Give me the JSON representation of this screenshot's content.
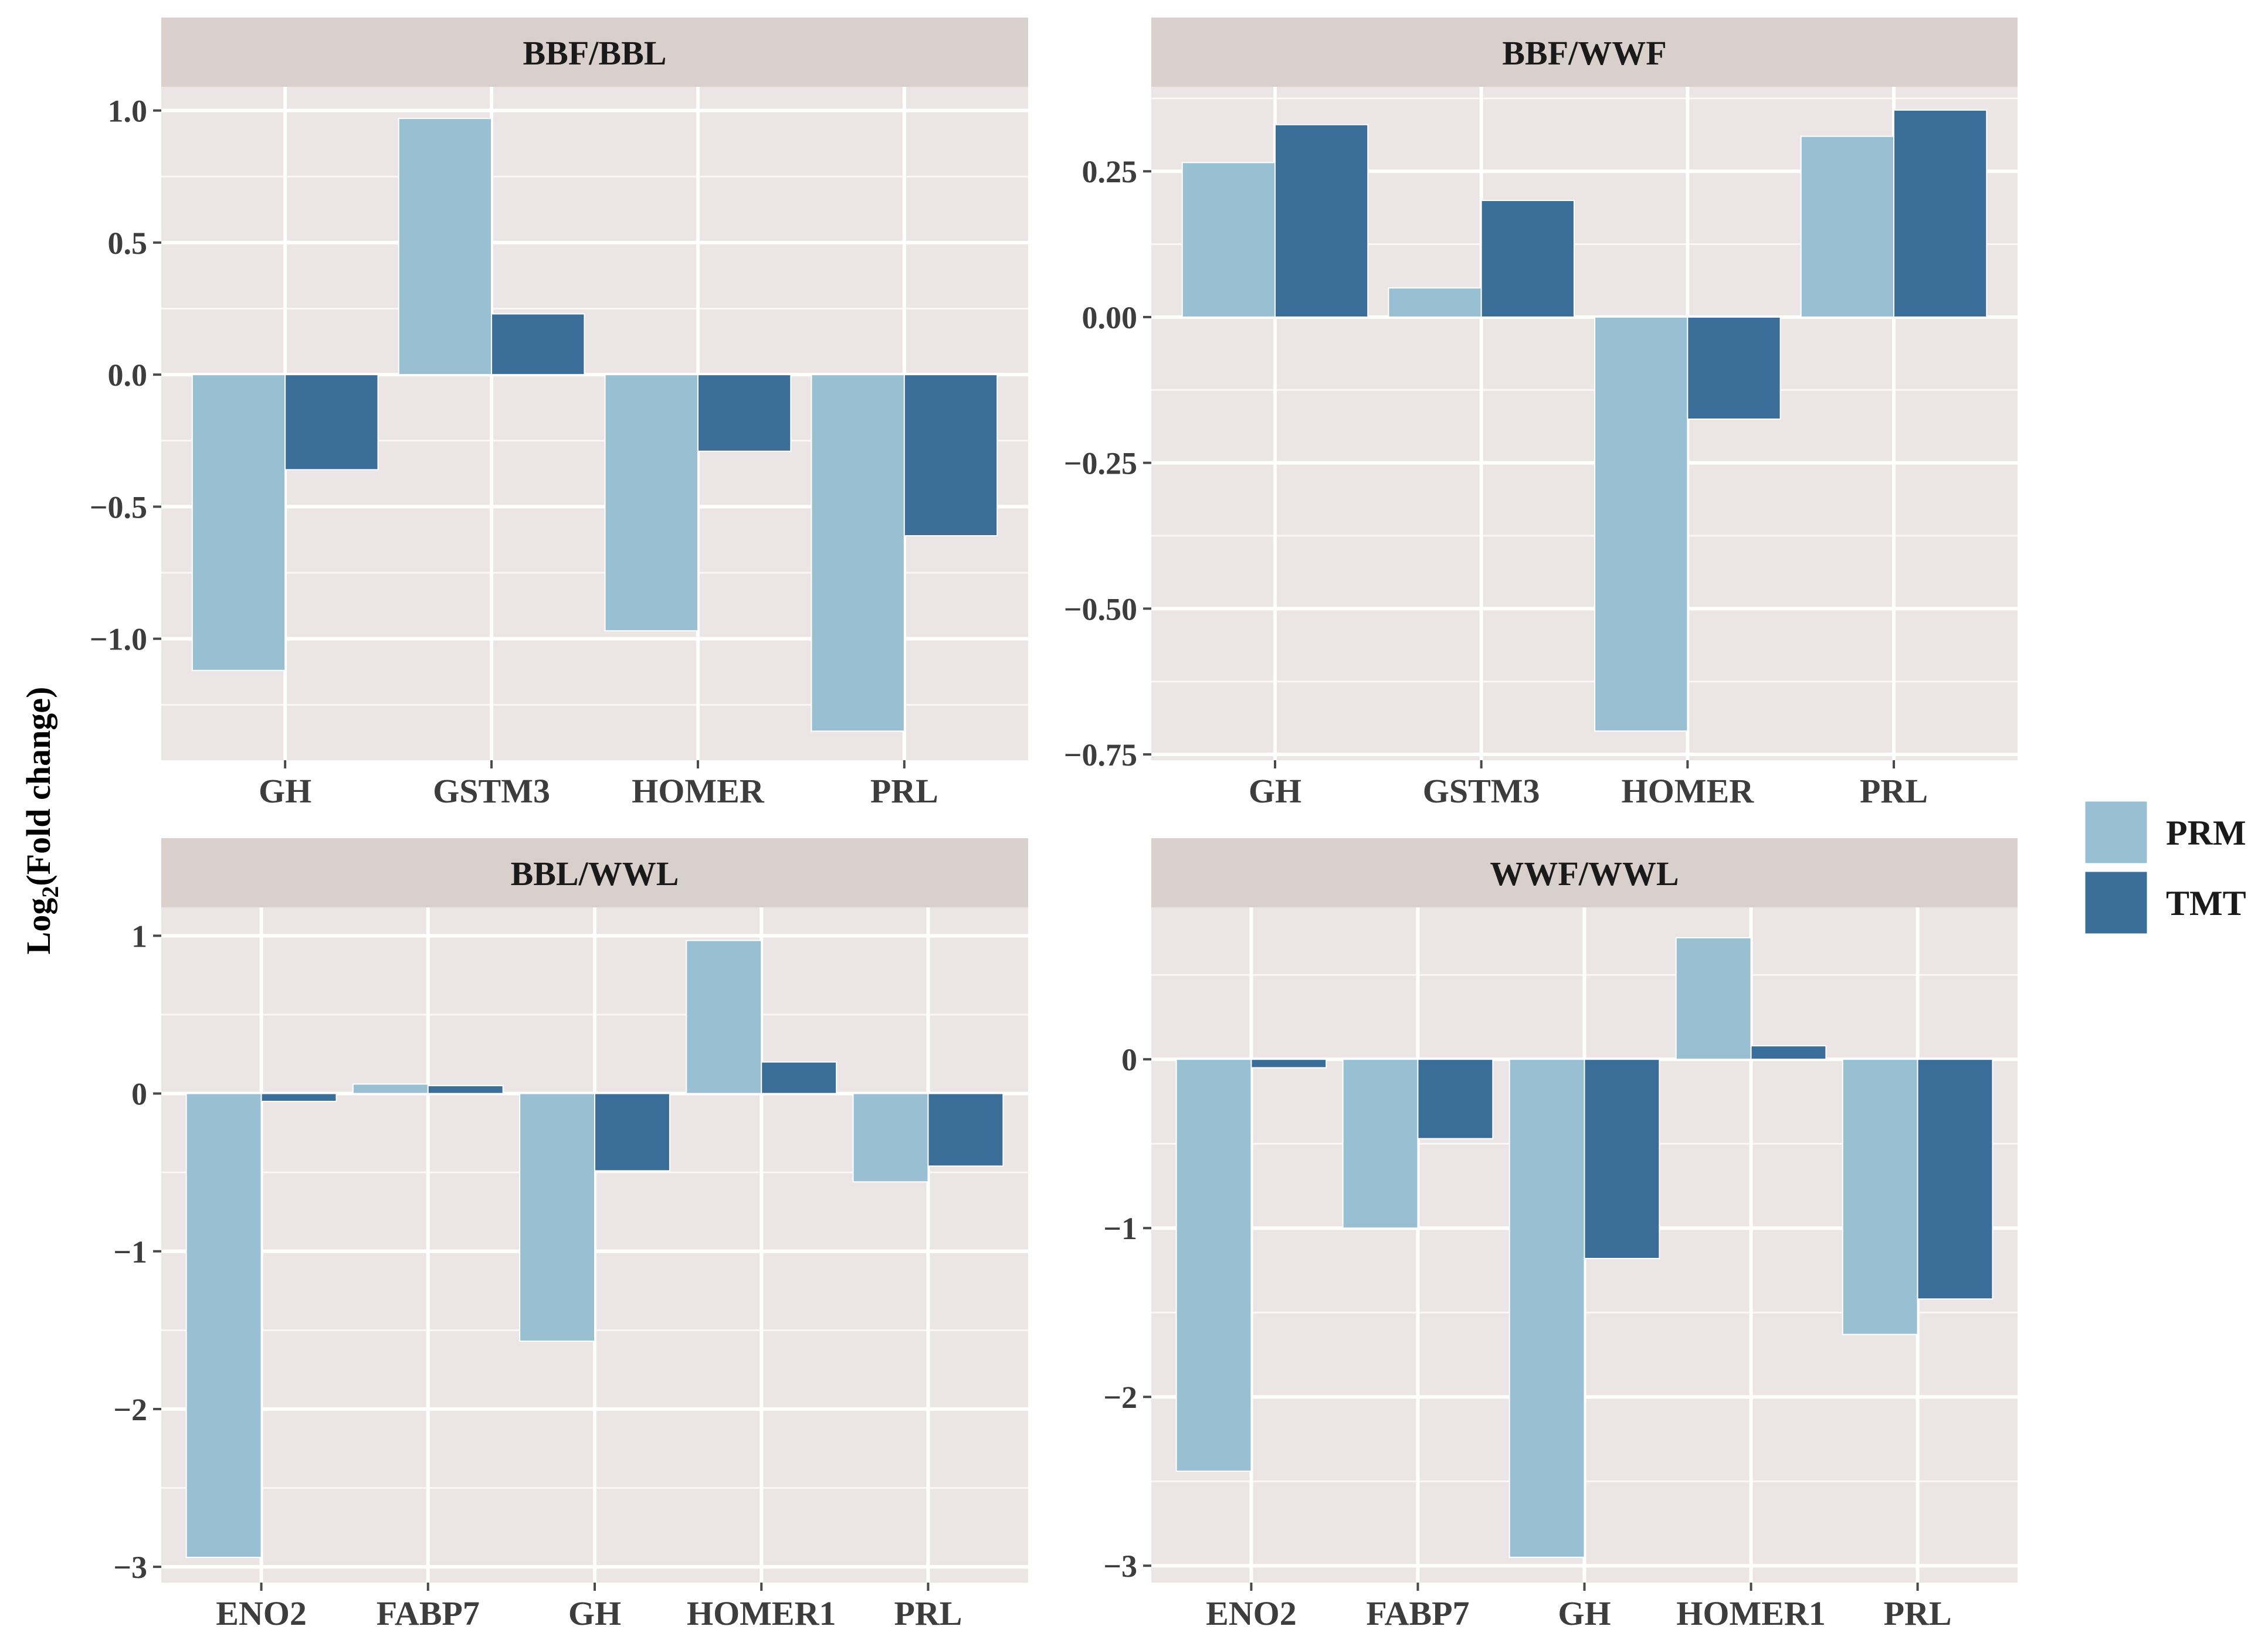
{
  "colors": {
    "prm": "#98c0d2",
    "tmt": "#3a6e98",
    "panel_bg": "#ebe5e5",
    "strip_bg": "#d9d0cd",
    "grid": "#ffffff",
    "text": "#3d3d3d",
    "tick": "#4a4a4a"
  },
  "y_axis_label": {
    "prefix": "Log",
    "subscript": "2",
    "suffix": "(Fold change)"
  },
  "legend": [
    {
      "name": "PRM",
      "color_key": "prm"
    },
    {
      "name": "TMT",
      "color_key": "tmt"
    }
  ],
  "chart_data": [
    {
      "type": "bar",
      "title": "BBF/BBL",
      "categories": [
        "GH",
        "GSTM3",
        "HOMER",
        "PRL"
      ],
      "series": [
        {
          "name": "PRM",
          "values": [
            -1.12,
            0.97,
            -0.97,
            -1.35
          ]
        },
        {
          "name": "TMT",
          "values": [
            -0.36,
            0.23,
            -0.29,
            -0.61
          ]
        }
      ],
      "ylim": [
        -1.46,
        1.09
      ],
      "yticks": [
        1.0,
        0.5,
        0.0,
        -0.5,
        -1.0
      ],
      "ytick_labels": [
        "1.0",
        "0.5",
        "0.0",
        "−0.5",
        "−1.0"
      ],
      "xlabel": "",
      "ylabel": "Log2(Fold change)"
    },
    {
      "type": "bar",
      "title": "BBF/WWF",
      "categories": [
        "GH",
        "GSTM3",
        "HOMER",
        "PRL"
      ],
      "series": [
        {
          "name": "PRM",
          "values": [
            0.265,
            0.05,
            -0.71,
            0.31
          ]
        },
        {
          "name": "TMT",
          "values": [
            0.33,
            0.2,
            -0.175,
            0.355
          ]
        }
      ],
      "ylim": [
        -0.76,
        0.395
      ],
      "yticks": [
        0.25,
        0.0,
        -0.25,
        -0.5,
        -0.75
      ],
      "ytick_labels": [
        "0.25",
        "0.00",
        "−0.25",
        "−0.50",
        "−0.75"
      ],
      "xlabel": "",
      "ylabel": "Log2(Fold change)"
    },
    {
      "type": "bar",
      "title": "BBL/WWL",
      "categories": [
        "ENO2",
        "FABP7",
        "GH",
        "HOMER1",
        "PRL"
      ],
      "series": [
        {
          "name": "PRM",
          "values": [
            -2.94,
            0.06,
            -1.57,
            0.97,
            -0.56
          ]
        },
        {
          "name": "TMT",
          "values": [
            -0.05,
            0.05,
            -0.49,
            0.2,
            -0.46
          ]
        }
      ],
      "ylim": [
        -3.1,
        1.18
      ],
      "yticks": [
        1,
        0,
        -1,
        -2,
        -3
      ],
      "ytick_labels": [
        "1",
        "0",
        "−1",
        "−2",
        "−3"
      ],
      "xlabel": "",
      "ylabel": "Log2(Fold change)"
    },
    {
      "type": "bar",
      "title": "WWF/WWL",
      "categories": [
        "ENO2",
        "FABP7",
        "GH",
        "HOMER1",
        "PRL"
      ],
      "series": [
        {
          "name": "PRM",
          "values": [
            -2.44,
            -1.0,
            -2.95,
            0.72,
            -1.63
          ]
        },
        {
          "name": "TMT",
          "values": [
            -0.05,
            -0.47,
            -1.18,
            0.08,
            -1.42
          ]
        }
      ],
      "ylim": [
        -3.1,
        0.9
      ],
      "yticks": [
        0,
        -1,
        -2,
        -3
      ],
      "ytick_labels": [
        "0",
        "−1",
        "−2",
        "−3"
      ],
      "xlabel": "",
      "ylabel": "Log2(Fold change)"
    }
  ]
}
